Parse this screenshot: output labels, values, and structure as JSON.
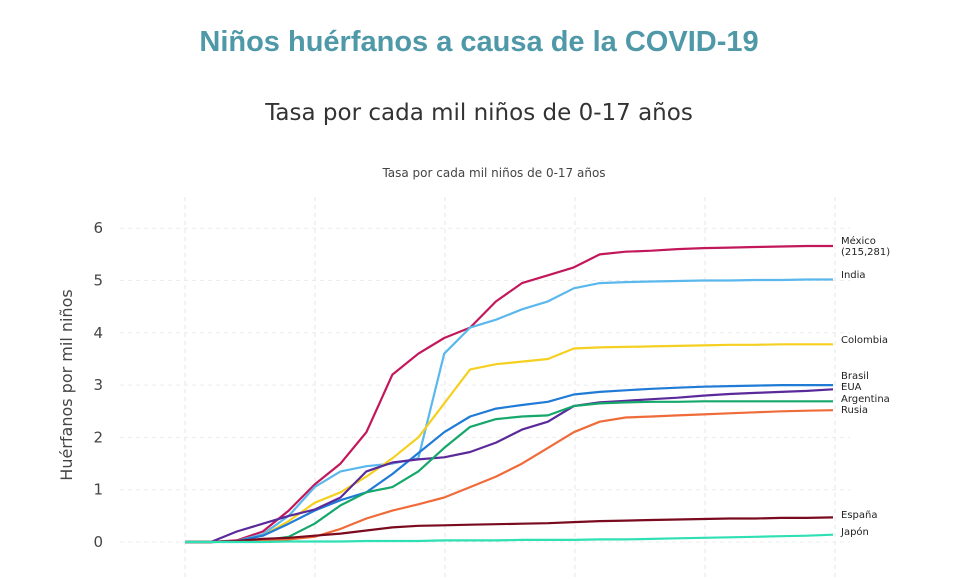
{
  "page": {
    "title": "Niños huérfanos a causa de la COVID-19",
    "subtitle": "Tasa por cada mil niños de 0-17 años"
  },
  "chart_data": {
    "type": "line",
    "title": "Tasa por cada mil niños de 0-17 años",
    "xlabel": "",
    "ylabel": "Huérfanos por mil niños",
    "ylim": [
      0,
      6.5
    ],
    "yticks": [
      0,
      1,
      2,
      3,
      4,
      5,
      6
    ],
    "grid": true,
    "x": [
      0,
      4,
      8,
      12,
      16,
      20,
      24,
      28,
      32,
      36,
      40,
      44,
      48,
      52,
      56,
      60,
      64,
      68,
      72,
      76,
      80,
      84,
      88,
      92,
      96,
      100
    ],
    "series": [
      {
        "name": "México",
        "label_lines": [
          "México",
          "(215,281)"
        ],
        "color": "#c2185b",
        "values": [
          0,
          0,
          0.03,
          0.2,
          0.6,
          1.1,
          1.5,
          2.1,
          3.2,
          3.6,
          3.9,
          4.1,
          4.6,
          4.95,
          5.1,
          5.25,
          5.5,
          5.55,
          5.57,
          5.6,
          5.62,
          5.63,
          5.64,
          5.65,
          5.66,
          5.66
        ]
      },
      {
        "name": "India",
        "label_lines": [
          "India"
        ],
        "color": "#5bb8ec",
        "values": [
          0,
          0,
          0.02,
          0.15,
          0.5,
          1.05,
          1.35,
          1.45,
          1.5,
          1.6,
          3.6,
          4.1,
          4.25,
          4.45,
          4.6,
          4.85,
          4.95,
          4.97,
          4.98,
          4.99,
          5.0,
          5.0,
          5.01,
          5.01,
          5.02,
          5.02
        ]
      },
      {
        "name": "Colombia",
        "label_lines": [
          "Colombia"
        ],
        "color": "#f5d020",
        "values": [
          0,
          0,
          0.02,
          0.12,
          0.4,
          0.75,
          0.95,
          1.25,
          1.6,
          2.0,
          2.65,
          3.3,
          3.4,
          3.45,
          3.5,
          3.7,
          3.72,
          3.73,
          3.74,
          3.75,
          3.76,
          3.77,
          3.77,
          3.78,
          3.78,
          3.78
        ]
      },
      {
        "name": "Brasil",
        "label_lines": [
          "Brasil"
        ],
        "color": "#1f7bd6",
        "values": [
          0,
          0,
          0.02,
          0.12,
          0.35,
          0.6,
          0.8,
          0.95,
          1.3,
          1.7,
          2.1,
          2.4,
          2.55,
          2.62,
          2.68,
          2.82,
          2.87,
          2.9,
          2.93,
          2.95,
          2.97,
          2.98,
          2.99,
          3.0,
          3.0,
          3.0
        ]
      },
      {
        "name": "EUA",
        "label_lines": [
          "EUA"
        ],
        "color": "#5b2a9a",
        "values": [
          0,
          0,
          0.2,
          0.35,
          0.5,
          0.62,
          0.85,
          1.35,
          1.52,
          1.58,
          1.62,
          1.72,
          1.9,
          2.15,
          2.3,
          2.6,
          2.67,
          2.7,
          2.73,
          2.76,
          2.8,
          2.83,
          2.85,
          2.87,
          2.89,
          2.92
        ]
      },
      {
        "name": "Argentina",
        "label_lines": [
          "Argentina"
        ],
        "color": "#16a76b",
        "values": [
          0,
          0,
          0.01,
          0.03,
          0.1,
          0.35,
          0.7,
          0.95,
          1.05,
          1.35,
          1.8,
          2.2,
          2.35,
          2.4,
          2.42,
          2.6,
          2.65,
          2.67,
          2.68,
          2.68,
          2.69,
          2.69,
          2.69,
          2.69,
          2.69,
          2.69
        ]
      },
      {
        "name": "Rusia",
        "label_lines": [
          "Rusia"
        ],
        "color": "#ef6b3a",
        "values": [
          0,
          0,
          0.01,
          0.02,
          0.05,
          0.1,
          0.25,
          0.45,
          0.6,
          0.72,
          0.85,
          1.05,
          1.25,
          1.5,
          1.8,
          2.1,
          2.3,
          2.38,
          2.4,
          2.42,
          2.44,
          2.46,
          2.48,
          2.5,
          2.51,
          2.52
        ]
      },
      {
        "name": "España",
        "label_lines": [
          "España"
        ],
        "color": "#7a0a1e",
        "values": [
          0,
          0,
          0.02,
          0.06,
          0.08,
          0.12,
          0.16,
          0.22,
          0.28,
          0.31,
          0.32,
          0.33,
          0.34,
          0.35,
          0.36,
          0.38,
          0.4,
          0.41,
          0.42,
          0.43,
          0.44,
          0.45,
          0.45,
          0.46,
          0.46,
          0.47
        ]
      },
      {
        "name": "Japón",
        "label_lines": [
          "Japón"
        ],
        "color": "#2fe0b4",
        "values": [
          0,
          0,
          0,
          0,
          0.01,
          0.01,
          0.01,
          0.02,
          0.02,
          0.02,
          0.03,
          0.03,
          0.03,
          0.04,
          0.04,
          0.04,
          0.05,
          0.05,
          0.06,
          0.07,
          0.08,
          0.09,
          0.1,
          0.11,
          0.12,
          0.14
        ]
      }
    ]
  }
}
